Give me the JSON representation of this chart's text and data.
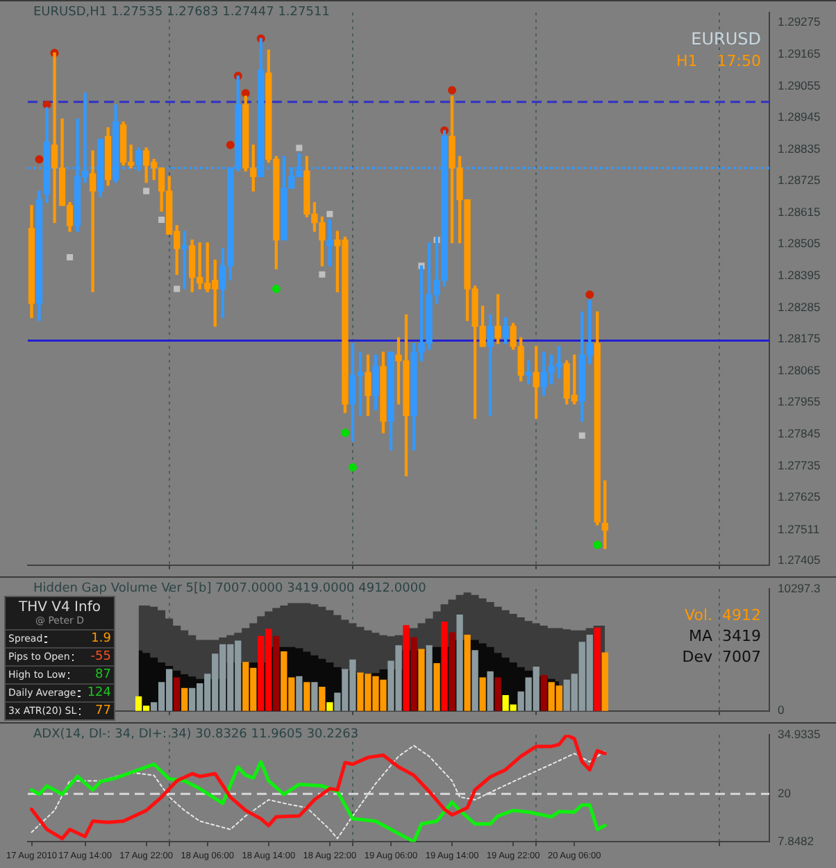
{
  "chart_data": [
    {
      "type": "candlestick",
      "title": "EURUSD,H1 1.27535 1.27683 1.27447 1.27511",
      "annotations": [
        "EURUSD",
        "H1    17:50"
      ],
      "x": [
        "2010-08-17T07:00",
        "2010-08-17T08:00",
        "2010-08-17T09:00",
        "2010-08-17T10:00",
        "2010-08-17T11:00",
        "2010-08-17T12:00",
        "2010-08-17T13:00",
        "2010-08-17T14:00",
        "2010-08-17T15:00",
        "2010-08-17T16:00",
        "2010-08-17T17:00",
        "2010-08-17T18:00",
        "2010-08-17T19:00",
        "2010-08-17T20:00",
        "2010-08-17T21:00",
        "2010-08-17T22:00",
        "2010-08-17T23:00",
        "2010-08-18T00:00",
        "2010-08-18T01:00",
        "2010-08-18T02:00",
        "2010-08-18T03:00",
        "2010-08-18T04:00",
        "2010-08-18T05:00",
        "2010-08-18T06:00",
        "2010-08-18T07:00",
        "2010-08-18T08:00",
        "2010-08-18T09:00",
        "2010-08-18T10:00",
        "2010-08-18T11:00",
        "2010-08-18T12:00",
        "2010-08-18T13:00",
        "2010-08-18T14:00",
        "2010-08-18T15:00",
        "2010-08-18T16:00",
        "2010-08-18T17:00",
        "2010-08-18T18:00",
        "2010-08-18T19:00",
        "2010-08-18T20:00",
        "2010-08-18T21:00",
        "2010-08-18T22:00",
        "2010-08-18T23:00",
        "2010-08-19T00:00",
        "2010-08-19T01:00",
        "2010-08-19T02:00",
        "2010-08-19T03:00",
        "2010-08-19T04:00",
        "2010-08-19T05:00",
        "2010-08-19T06:00",
        "2010-08-19T07:00",
        "2010-08-19T08:00",
        "2010-08-19T09:00",
        "2010-08-19T10:00",
        "2010-08-19T11:00",
        "2010-08-19T12:00",
        "2010-08-19T13:00",
        "2010-08-19T14:00",
        "2010-08-19T15:00",
        "2010-08-19T16:00",
        "2010-08-19T17:00",
        "2010-08-19T18:00",
        "2010-08-19T19:00",
        "2010-08-19T20:00",
        "2010-08-19T21:00",
        "2010-08-19T22:00",
        "2010-08-19T23:00",
        "2010-08-20T00:00",
        "2010-08-20T01:00",
        "2010-08-20T02:00",
        "2010-08-20T03:00",
        "2010-08-20T04:00",
        "2010-08-20T05:00",
        "2010-08-20T06:00",
        "2010-08-20T07:00",
        "2010-08-20T08:00",
        "2010-08-20T09:00",
        "2010-08-20T10:00"
      ],
      "ohlc": [
        [
          1.2856,
          1.2864,
          1.2825,
          1.283
        ],
        [
          1.283,
          1.2869,
          1.2824,
          1.2866
        ],
        [
          1.2868,
          1.2898,
          1.2865,
          1.2886
        ],
        [
          1.2885,
          1.2917,
          1.2858,
          1.2877
        ],
        [
          1.2877,
          1.2894,
          1.2864,
          1.2864
        ],
        [
          1.2864,
          1.2865,
          1.2855,
          1.2857
        ],
        [
          1.2857,
          1.2894,
          1.2855,
          1.2874
        ],
        [
          1.2874,
          1.2903,
          1.2872,
          1.2876
        ],
        [
          1.2875,
          1.2883,
          1.2834,
          1.2869
        ],
        [
          1.2869,
          1.2887,
          1.2867,
          1.2887
        ],
        [
          1.2888,
          1.2891,
          1.2871,
          1.2873
        ],
        [
          1.2873,
          1.2899,
          1.2872,
          1.2893
        ],
        [
          1.2892,
          1.2893,
          1.2878,
          1.2879
        ],
        [
          1.2879,
          1.2885,
          1.2877,
          1.2878
        ],
        [
          1.2878,
          1.2884,
          1.2876,
          1.2883
        ],
        [
          1.2883,
          1.2884,
          1.2872,
          1.2878
        ],
        [
          1.2879,
          1.288,
          1.2873,
          1.2877
        ],
        [
          1.2877,
          1.2877,
          1.2862,
          1.2869
        ],
        [
          1.2869,
          1.2874,
          1.2854,
          1.2854
        ],
        [
          1.2855,
          1.2857,
          1.284,
          1.2849
        ],
        [
          1.2849,
          1.2855,
          1.2835,
          1.285
        ],
        [
          1.285,
          1.2852,
          1.2834,
          1.2839
        ],
        [
          1.2839,
          1.2851,
          1.2835,
          1.2837
        ],
        [
          1.2837,
          1.2851,
          1.2834,
          1.2835
        ],
        [
          1.2838,
          1.2845,
          1.2822,
          1.2835
        ],
        [
          1.2835,
          1.2849,
          1.2825,
          1.2843
        ],
        [
          1.2843,
          1.2877,
          1.2838,
          1.2877
        ],
        [
          1.2877,
          1.2909,
          1.2876,
          1.2899
        ],
        [
          1.2899,
          1.2902,
          1.2876,
          1.2877
        ],
        [
          1.2877,
          1.2885,
          1.2869,
          1.2874
        ],
        [
          1.2874,
          1.2922,
          1.2874,
          1.2911
        ],
        [
          1.291,
          1.2918,
          1.2879,
          1.288
        ],
        [
          1.288,
          1.2881,
          1.2842,
          1.2852
        ],
        [
          1.2852,
          1.2881,
          1.2852,
          1.287
        ],
        [
          1.287,
          1.2877,
          1.287,
          1.2874
        ],
        [
          1.2874,
          1.2882,
          1.2874,
          1.2876
        ],
        [
          1.2876,
          1.2881,
          1.286,
          1.2861
        ],
        [
          1.2861,
          1.2865,
          1.2855,
          1.2858
        ],
        [
          1.2858,
          1.286,
          1.2843,
          1.2852
        ],
        [
          1.285,
          1.2859,
          1.2843,
          1.2852
        ],
        [
          1.2852,
          1.2855,
          1.2834,
          1.285
        ],
        [
          1.2852,
          1.2853,
          1.2792,
          1.2795
        ],
        [
          1.2795,
          1.2816,
          1.2782,
          1.2805
        ],
        [
          1.2805,
          1.2813,
          1.2791,
          1.2806
        ],
        [
          1.2806,
          1.2812,
          1.2791,
          1.2798
        ],
        [
          1.2798,
          1.2812,
          1.2793,
          1.2808
        ],
        [
          1.2808,
          1.2813,
          1.2785,
          1.2789
        ],
        [
          1.2789,
          1.2813,
          1.2779,
          1.2813
        ],
        [
          1.2812,
          1.2818,
          1.2795,
          1.281
        ],
        [
          1.281,
          1.2826,
          1.277,
          1.2791
        ],
        [
          1.2791,
          1.2816,
          1.2779,
          1.2813
        ],
        [
          1.2813,
          1.2843,
          1.281,
          1.2816
        ],
        [
          1.2816,
          1.2851,
          1.2814,
          1.2833
        ],
        [
          1.2833,
          1.2853,
          1.283,
          1.2838
        ],
        [
          1.2838,
          1.289,
          1.2836,
          1.2888
        ],
        [
          1.2888,
          1.2902,
          1.2851,
          1.2877
        ],
        [
          1.2877,
          1.2881,
          1.2851,
          1.2866
        ],
        [
          1.2866,
          1.2866,
          1.2824,
          1.2835
        ],
        [
          1.2835,
          1.2836,
          1.279,
          1.2822
        ],
        [
          1.2822,
          1.2829,
          1.2815,
          1.2815
        ],
        [
          1.2815,
          1.2826,
          1.2791,
          1.2822
        ],
        [
          1.2822,
          1.2833,
          1.2816,
          1.2818
        ],
        [
          1.2818,
          1.2825,
          1.2816,
          1.2822
        ],
        [
          1.2822,
          1.2823,
          1.2814,
          1.2815
        ],
        [
          1.2815,
          1.2818,
          1.2803,
          1.2805
        ],
        [
          1.2805,
          1.281,
          1.2802,
          1.2806
        ],
        [
          1.2806,
          1.2815,
          1.279,
          1.2801
        ],
        [
          1.2801,
          1.2813,
          1.2798,
          1.2806
        ],
        [
          1.2806,
          1.2812,
          1.2802,
          1.2808
        ],
        [
          1.2808,
          1.2815,
          1.2804,
          1.2809
        ],
        [
          1.2809,
          1.281,
          1.2795,
          1.2797
        ],
        [
          1.2798,
          1.2812,
          1.2795,
          1.2796
        ],
        [
          1.2796,
          1.2827,
          1.2789,
          1.2812
        ],
        [
          1.2812,
          1.2831,
          1.2809,
          1.2816
        ],
        [
          1.2816,
          1.2827,
          1.2753,
          1.2754
        ],
        [
          1.27535,
          1.27683,
          1.27447,
          1.27511
        ]
      ],
      "colors": [
        "#ff9900",
        "#3399ff",
        "#3399ff",
        "#ff9900",
        "#ff9900",
        "#ff9900",
        "#3399ff",
        "#3399ff",
        "#ff9900",
        "#3399ff",
        "#ff9900",
        "#3399ff",
        "#ff9900",
        "#ff9900",
        "#3399ff",
        "#ff9900",
        "#ff9900",
        "#ff9900",
        "#ff9900",
        "#ff9900",
        "#3399ff",
        "#ff9900",
        "#ff9900",
        "#ff9900",
        "#ff9900",
        "#3399ff",
        "#3399ff",
        "#3399ff",
        "#ff9900",
        "#ff9900",
        "#3399ff",
        "#ff9900",
        "#ff9900",
        "#3399ff",
        "#3399ff",
        "#3399ff",
        "#ff9900",
        "#ff9900",
        "#ff9900",
        "#3399ff",
        "#ff9900",
        "#ff9900",
        "#3399ff",
        "#3399ff",
        "#ff9900",
        "#3399ff",
        "#ff9900",
        "#3399ff",
        "#ff9900",
        "#ff9900",
        "#3399ff",
        "#3399ff",
        "#3399ff",
        "#3399ff",
        "#3399ff",
        "#ff9900",
        "#ff9900",
        "#ff9900",
        "#ff9900",
        "#ff9900",
        "#3399ff",
        "#ff9900",
        "#3399ff",
        "#ff9900",
        "#ff9900",
        "#3399ff",
        "#ff9900",
        "#3399ff",
        "#3399ff",
        "#3399ff",
        "#ff9900",
        "#ff9900",
        "#3399ff",
        "#3399ff",
        "#ff9900",
        "#ff9900"
      ],
      "series": [
        {
          "type": "scatter",
          "marker": "circle",
          "color": "#cc2200",
          "x": [
            "2010-08-17T08:00",
            "2010-08-17T09:00",
            "2010-08-17T10:00",
            "2010-08-18T09:00",
            "2010-08-18T10:00",
            "2010-08-18T11:00",
            "2010-08-18T13:00",
            "2010-08-19T13:00",
            "2010-08-19T14:00",
            "2010-08-20T08:00"
          ],
          "values": [
            1.288,
            1.2899,
            1.2917,
            1.2885,
            1.2909,
            1.2903,
            1.2922,
            1.289,
            1.2904,
            1.2833
          ]
        },
        {
          "type": "scatter",
          "marker": "circle",
          "color": "#00dd00",
          "x": [
            "2010-08-18T15:00",
            "2010-08-19T00:00",
            "2010-08-19T01:00",
            "2010-08-20T09:00"
          ],
          "values": [
            1.2835,
            1.2785,
            1.2773,
            1.2746
          ]
        },
        {
          "type": "scatter",
          "marker": "square",
          "color": "#c0c0c0",
          "x": [
            "2010-08-17T12:00",
            "2010-08-17T22:00",
            "2010-08-18T00:00",
            "2010-08-18T02:00",
            "2010-08-18T18:00",
            "2010-08-18T21:00",
            "2010-08-18T22:00",
            "2010-08-19T10:00",
            "2010-08-19T12:00",
            "2010-08-20T07:00"
          ],
          "values": [
            1.2846,
            1.2869,
            1.2859,
            1.2835,
            1.2884,
            1.284,
            1.2861,
            1.2843,
            1.2852,
            1.2784
          ]
        }
      ],
      "ref_lines": [
        {
          "axis": "y",
          "value": 1.29,
          "color": "#3030c8",
          "line_style": "dashed"
        },
        {
          "axis": "y",
          "value": 1.2877,
          "color": "#3399ff",
          "line_style": "dotted"
        },
        {
          "axis": "y",
          "value": 1.2817,
          "color": "#2020d0",
          "line_style": "solid"
        }
      ],
      "xlim": [
        "2010-08-17T06:30",
        "2010-08-21T07:30"
      ],
      "xticks": [
        {
          "value": "2010-08-18T01:00",
          "label": null
        },
        {
          "value": "2010-08-19T01:00",
          "label": null
        },
        {
          "value": "2010-08-20T01:00",
          "label": null
        },
        {
          "value": "2010-08-21T01:00",
          "label": null
        }
      ],
      "ylim": [
        1.2739,
        1.2931
      ],
      "yticks": [
        1.29275,
        1.29165,
        1.29055,
        1.28945,
        1.28835,
        1.28725,
        1.28615,
        1.28505,
        1.28395,
        1.28285,
        1.28175,
        1.28065,
        1.27955,
        1.27845,
        1.27735,
        1.27625,
        1.27511,
        1.27405
      ],
      "grid": "x",
      "tick_labels": "y"
    },
    {
      "type": "bar",
      "title": "Hidden Gap Volume Ver 5[b] 7007.0000 3419.0000 4912.0000",
      "annotations": [
        "Vol.  4912",
        "MA  3419",
        "Dev  7007"
      ],
      "x": [
        "2010-08-17T21:00",
        "2010-08-17T22:00",
        "2010-08-17T23:00",
        "2010-08-18T00:00",
        "2010-08-18T01:00",
        "2010-08-18T02:00",
        "2010-08-18T03:00",
        "2010-08-18T04:00",
        "2010-08-18T05:00",
        "2010-08-18T06:00",
        "2010-08-18T07:00",
        "2010-08-18T08:00",
        "2010-08-18T09:00",
        "2010-08-18T10:00",
        "2010-08-18T11:00",
        "2010-08-18T12:00",
        "2010-08-18T13:00",
        "2010-08-18T14:00",
        "2010-08-18T15:00",
        "2010-08-18T16:00",
        "2010-08-18T17:00",
        "2010-08-18T18:00",
        "2010-08-18T19:00",
        "2010-08-18T20:00",
        "2010-08-18T21:00",
        "2010-08-18T22:00",
        "2010-08-18T23:00",
        "2010-08-19T00:00",
        "2010-08-19T01:00",
        "2010-08-19T02:00",
        "2010-08-19T03:00",
        "2010-08-19T04:00",
        "2010-08-19T05:00",
        "2010-08-19T06:00",
        "2010-08-19T07:00",
        "2010-08-19T08:00",
        "2010-08-19T09:00",
        "2010-08-19T10:00",
        "2010-08-19T11:00",
        "2010-08-19T12:00",
        "2010-08-19T13:00",
        "2010-08-19T14:00",
        "2010-08-19T15:00",
        "2010-08-19T16:00",
        "2010-08-19T17:00",
        "2010-08-19T18:00",
        "2010-08-19T19:00",
        "2010-08-19T20:00",
        "2010-08-19T21:00",
        "2010-08-19T22:00",
        "2010-08-19T23:00",
        "2010-08-20T00:00",
        "2010-08-20T01:00",
        "2010-08-20T02:00",
        "2010-08-20T03:00",
        "2010-08-20T04:00",
        "2010-08-20T05:00",
        "2010-08-20T06:00",
        "2010-08-20T07:00",
        "2010-08-20T08:00",
        "2010-08-20T09:00",
        "2010-08-20T10:00"
      ],
      "series": [
        {
          "type": "area",
          "color": "#3c3c3c",
          "values": [
            8900,
            8900,
            8800,
            8500,
            7800,
            7200,
            6800,
            6400,
            6000,
            6000,
            6000,
            6200,
            6400,
            6600,
            7000,
            7400,
            8000,
            8400,
            8700,
            8900,
            9100,
            9100,
            9100,
            9000,
            8800,
            8500,
            8100,
            7700,
            7400,
            7100,
            6800,
            6600,
            6400,
            6300,
            6400,
            null,
            7000,
            7400,
            7800,
            8400,
            9000,
            9400,
            9800,
            10000,
            9800,
            9500,
            9200,
            8800,
            8500,
            8200,
            7900,
            7600,
            7400,
            7200,
            7000,
            7000,
            6900,
            6800,
            6800,
            7000,
            7200,
            7200
          ]
        },
        {
          "type": "area",
          "color": "#0a0a0a",
          "values": [
            5100,
            4900,
            4500,
            4100,
            3800,
            3400,
            3100,
            2900,
            2700,
            null,
            null,
            null,
            null,
            null,
            null,
            4100,
            null,
            null,
            null,
            5400,
            5400,
            5300,
            5000,
            4700,
            4400,
            4100,
            3700,
            3400,
            null,
            null,
            3100,
            3200,
            3500,
            null,
            null,
            null,
            null,
            5100,
            5400,
            null,
            null,
            null,
            null,
            null,
            6000,
            5700,
            5400,
            4900,
            4500,
            4100,
            3700,
            3400,
            null,
            2900,
            2700,
            2500,
            null,
            null,
            null,
            null,
            null,
            null
          ]
        },
        {
          "type": "bar",
          "values": [
            1200,
            400,
            700,
            2400,
            3500,
            2800,
            1900,
            1900,
            2300,
            3100,
            4800,
            5600,
            5600,
            5900,
            4100,
            3600,
            6300,
            6900,
            6300,
            5000,
            2800,
            2900,
            2400,
            2400,
            2000,
            700,
            1500,
            3500,
            4300,
            3200,
            3100,
            2900,
            2600,
            4200,
            5500,
            7200,
            6200,
            5200,
            5500,
            4000,
            7500,
            6600,
            8100,
            6400,
            5100,
            2800,
            3300,
            2800,
            1300,
            500,
            1600,
            2800,
            3700,
            3000,
            2400,
            2100,
            2600,
            3100,
            5800,
            6400,
            7000,
            4912
          ],
          "colors": [
            "#ffff00",
            "#ffff00",
            "#8c9ba0",
            "#8c9ba0",
            "#8c9ba0",
            "#990000",
            "#ff9900",
            "#8c9ba0",
            "#8c9ba0",
            "#8c9ba0",
            "#8c9ba0",
            "#8c9ba0",
            "#8c9ba0",
            "#8c9ba0",
            "#ff9900",
            "#ff9900",
            "#ff0000",
            "#ff0000",
            "#990000",
            "#ff9900",
            "#ff9900",
            "#8c9ba0",
            "#ff9900",
            "#8c9ba0",
            "#ff9900",
            "#ffff00",
            "#8c9ba0",
            "#8c9ba0",
            "#8c9ba0",
            "#ff9900",
            "#ff9900",
            "#ff9900",
            "#ff9900",
            "#8c9ba0",
            "#8c9ba0",
            "#ff0000",
            "#990000",
            "#ff9900",
            "#8c9ba0",
            "#ff9900",
            "#ff0000",
            "#990000",
            "#8c9ba0",
            "#ff9900",
            "#8c9ba0",
            "#ff9900",
            "#8c9ba0",
            "#990000",
            "#ffff00",
            "#ffff00",
            "#8c9ba0",
            "#8c9ba0",
            "#8c9ba0",
            "#990000",
            "#ff9900",
            "#ff9900",
            "#8c9ba0",
            "#8c9ba0",
            "#8c9ba0",
            "#8c9ba0",
            "#ff0000",
            "#ff9900"
          ]
        }
      ],
      "xlim": [
        "2010-08-17T06:30",
        "2010-08-21T07:30"
      ],
      "xticks": [
        {
          "value": "2010-08-18T01:00",
          "label": null
        },
        {
          "value": "2010-08-19T01:00",
          "label": null
        },
        {
          "value": "2010-08-20T01:00",
          "label": null
        },
        {
          "value": "2010-08-21T01:00",
          "label": null
        }
      ],
      "ylim": [
        0,
        10297.3
      ],
      "yticks": [
        0,
        10297.3
      ],
      "grid": "x",
      "tick_labels": "y"
    },
    {
      "type": "line",
      "title": "ADX(14, DI-: 34, DI+: 34) 30.8326 11.9605 30.2263",
      "series": [
        {
          "color": "#ff1010",
          "x": [
            "2010-08-17T07:00",
            "2010-08-17T09:00",
            "2010-08-17T11:00",
            "2010-08-17T12:00",
            "2010-08-17T14:00",
            "2010-08-17T15:00",
            "2010-08-17T17:00",
            "2010-08-17T19:00",
            "2010-08-17T22:00",
            "2010-08-18T00:00",
            "2010-08-18T02:00",
            "2010-08-18T04:00",
            "2010-08-18T05:00",
            "2010-08-18T07:00",
            "2010-08-18T09:00",
            "2010-08-18T11:00",
            "2010-08-18T13:00",
            "2010-08-18T14:00",
            "2010-08-18T15:00",
            "2010-08-18T18:00",
            "2010-08-18T20:00",
            "2010-08-18T22:00",
            "2010-08-18T23:00",
            "2010-08-19T00:00",
            "2010-08-19T01:00",
            "2010-08-19T03:00",
            "2010-08-19T05:00",
            "2010-08-19T07:00",
            "2010-08-19T09:00",
            "2010-08-19T11:00",
            "2010-08-19T13:00",
            "2010-08-19T14:00",
            "2010-08-19T16:00",
            "2010-08-19T17:00",
            "2010-08-19T19:00",
            "2010-08-19T21:00",
            "2010-08-19T23:00",
            "2010-08-20T01:00",
            "2010-08-20T03:00",
            "2010-08-20T04:00",
            "2010-08-20T05:00",
            "2010-08-20T06:00",
            "2010-08-20T07:00",
            "2010-08-20T08:00",
            "2010-08-20T09:00",
            "2010-08-20T10:00"
          ],
          "values": [
            16.1,
            11,
            8.7,
            11,
            9.2,
            13.1,
            12.8,
            13.1,
            15.8,
            19.2,
            23.3,
            25.1,
            24.4,
            25.1,
            19.2,
            15.8,
            13.7,
            12,
            14.2,
            14.4,
            18.5,
            21.3,
            21,
            27.9,
            27.5,
            29.2,
            29.8,
            26.8,
            24.7,
            20.6,
            16.1,
            14.7,
            16.5,
            21,
            24.3,
            26.1,
            29.5,
            32,
            32,
            32.5,
            34.9,
            33.9,
            28.1,
            26.1,
            30.9,
            30.2
          ]
        },
        {
          "color": "#10ee10",
          "x": [
            "2010-08-17T07:00",
            "2010-08-17T08:00",
            "2010-08-17T09:00",
            "2010-08-17T11:00",
            "2010-08-17T13:00",
            "2010-08-17T15:00",
            "2010-08-17T16:00",
            "2010-08-17T18:00",
            "2010-08-17T21:00",
            "2010-08-17T23:00",
            "2010-08-18T01:00",
            "2010-08-18T03:00",
            "2010-08-18T05:00",
            "2010-08-18T08:00",
            "2010-08-18T10:00",
            "2010-08-18T11:00",
            "2010-08-18T12:00",
            "2010-08-18T13:00",
            "2010-08-18T14:00",
            "2010-08-18T16:00",
            "2010-08-18T18:00",
            "2010-08-18T21:00",
            "2010-08-18T23:00",
            "2010-08-19T01:00",
            "2010-08-19T04:00",
            "2010-08-19T06:00",
            "2010-08-19T09:00",
            "2010-08-19T10:00",
            "2010-08-19T12:00",
            "2010-08-19T14:00",
            "2010-08-19T15:00",
            "2010-08-19T17:00",
            "2010-08-19T19:00",
            "2010-08-19T20:00",
            "2010-08-19T22:00",
            "2010-08-20T00:00",
            "2010-08-20T03:00",
            "2010-08-20T04:00",
            "2010-08-20T06:00",
            "2010-08-20T07:00",
            "2010-08-20T08:00",
            "2010-08-20T09:00",
            "2010-08-20T10:00"
          ],
          "values": [
            21,
            19.9,
            22,
            19.9,
            24.4,
            21,
            23.1,
            24,
            26.1,
            27.5,
            23.8,
            23.3,
            21.3,
            17.6,
            26.8,
            24.7,
            24,
            28.1,
            23.3,
            19.9,
            22.4,
            22,
            20.6,
            13.7,
            13.1,
            11,
            7.9,
            12.4,
            13.1,
            17.9,
            15.8,
            12.4,
            12.4,
            14.4,
            15.8,
            15.4,
            14.2,
            15.5,
            15.4,
            17.2,
            17.2,
            11,
            12
          ]
        },
        {
          "color": "#e8e8e8",
          "line_style": "dotted",
          "x": [
            "2010-08-17T07:00",
            "2010-08-17T10:00",
            "2010-08-17T12:00",
            "2010-08-17T16:00",
            "2010-08-17T20:00",
            "2010-08-17T23:00",
            "2010-08-18T01:00",
            "2010-08-18T03:00",
            "2010-08-18T05:00",
            "2010-08-18T09:00",
            "2010-08-18T11:00",
            "2010-08-18T14:00",
            "2010-08-18T17:00",
            "2010-08-18T19:00",
            "2010-08-18T22:00",
            "2010-08-18T23:00",
            "2010-08-19T01:00",
            "2010-08-19T04:00",
            "2010-08-19T07:00",
            "2010-08-19T09:00",
            "2010-08-19T11:00",
            "2010-08-19T14:00",
            "2010-08-19T15:00",
            "2010-08-19T17:00",
            "2010-08-19T20:00",
            "2010-08-19T23:00",
            "2010-08-20T03:00",
            "2010-08-20T06:00",
            "2010-08-20T08:00",
            "2010-08-20T10:00"
          ],
          "values": [
            10.3,
            15.8,
            23.3,
            23.3,
            25.4,
            24.7,
            19.2,
            15.8,
            13.1,
            11,
            14.4,
            18.5,
            17.2,
            16.5,
            11,
            8.7,
            14.4,
            22.6,
            29.5,
            32.2,
            29.5,
            23.3,
            19.2,
            18.5,
            21.3,
            24,
            27.5,
            30.2,
            28.1,
            30.8
          ]
        }
      ],
      "ref_lines": [
        {
          "axis": "y",
          "value": 20,
          "color": "#d8d8d8",
          "line_style": "dashed"
        }
      ],
      "xlim": [
        "2010-08-17T06:30",
        "2010-08-21T07:30"
      ],
      "xticks": [
        {
          "value": "2010-08-17T07:00",
          "label": "17 Aug 2010"
        },
        {
          "value": "2010-08-17T14:00",
          "label": "17 Aug 14:00"
        },
        {
          "value": "2010-08-17T22:00",
          "label": "17 Aug 22:00"
        },
        {
          "value": "2010-08-18T06:00",
          "label": "18 Aug 06:00"
        },
        {
          "value": "2010-08-18T14:00",
          "label": "18 Aug 14:00"
        },
        {
          "value": "2010-08-18T22:00",
          "label": "18 Aug 22:00"
        },
        {
          "value": "2010-08-19T06:00",
          "label": "19 Aug 06:00"
        },
        {
          "value": "2010-08-19T14:00",
          "label": "19 Aug 14:00"
        },
        {
          "value": "2010-08-19T22:00",
          "label": "19 Aug 22:00"
        },
        {
          "value": "2010-08-20T06:00",
          "label": "20 Aug 06:00"
        },
        {
          "value": "2010-08-18T01:00",
          "label": null
        },
        {
          "value": "2010-08-19T01:00",
          "label": null
        },
        {
          "value": "2010-08-20T01:00",
          "label": null
        },
        {
          "value": "2010-08-21T01:00",
          "label": null
        }
      ],
      "ylim": [
        7.8482,
        34.9335
      ],
      "yticks": [
        34.9335,
        20,
        7.8482
      ],
      "grid": "x"
    },
    {
      "type": "other",
      "title": "THV  V4  Info",
      "subtitle": "@ Peter D",
      "categories": [
        "Spread",
        "Pips to Open",
        "High to Low",
        "Daily Average",
        "3x ATR(20) SL"
      ],
      "values": [
        1.9,
        -55,
        87,
        124,
        77
      ],
      "data_labels": true
    }
  ]
}
